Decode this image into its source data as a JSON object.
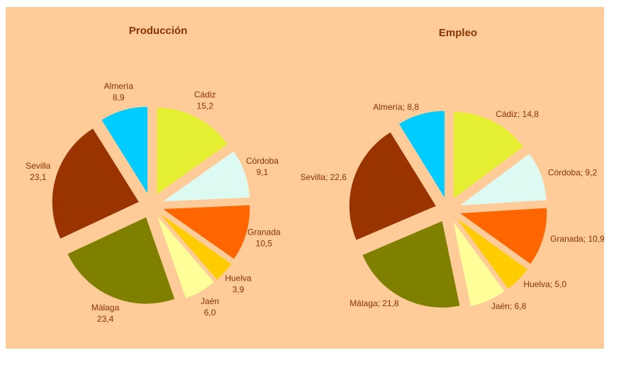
{
  "chart_data": [
    {
      "type": "pie",
      "title": "Producción",
      "categories": [
        "Cádiz",
        "Córdoba",
        "Granada",
        "Huelva",
        "Jaén",
        "Málaga",
        "Sevilla",
        "Almería"
      ],
      "values": [
        15.2,
        9.1,
        10.5,
        3.9,
        6.0,
        23.4,
        23.1,
        8.9
      ],
      "value_labels": [
        "15,2",
        "9,1",
        "10,5",
        "3,9",
        "6,0",
        "23,4",
        "23,1",
        "8,9"
      ],
      "colors": [
        "#e6f032",
        "#ddfaf2",
        "#ff6600",
        "#ffcc00",
        "#ffff99",
        "#808000",
        "#993300",
        "#00ccff"
      ]
    },
    {
      "type": "pie",
      "title": "Empleo",
      "categories": [
        "Cádiz",
        "Córdoba",
        "Granada",
        "Huelva",
        "Jaén",
        "Málaga",
        "Sevilla",
        "Almería"
      ],
      "values": [
        14.8,
        9.2,
        10.9,
        5.0,
        6.8,
        21.8,
        22.6,
        8.8
      ],
      "value_labels": [
        "Cádiz; 14,8",
        "Córdoba; 9,2",
        "Granada; 10,9",
        "Huelva; 5,0",
        "Jaén; 6,8",
        "Málaga; 21,8",
        "Sevilla; 22,6",
        "Almería; 8,8"
      ],
      "colors": [
        "#e6f032",
        "#ddfaf2",
        "#ff6600",
        "#ffcc00",
        "#ffff99",
        "#808000",
        "#993300",
        "#00ccff"
      ]
    }
  ]
}
